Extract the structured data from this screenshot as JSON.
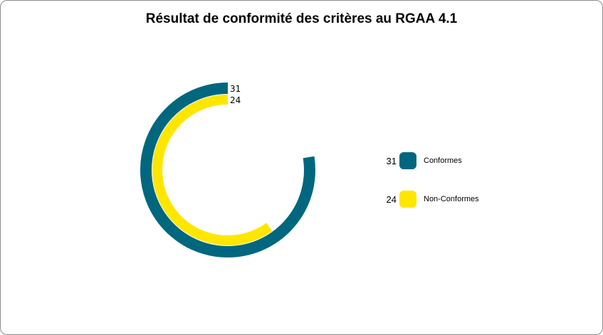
{
  "chart_data": {
    "type": "radial-bar",
    "title": "Résultat de conformité des critères au RGAA 4.1",
    "max": 40,
    "legend_position": "right",
    "series": [
      {
        "name": "Conformes",
        "value": 31,
        "value_label": "31",
        "color": "#00677f"
      },
      {
        "name": "Non-Conformes",
        "value": 24,
        "value_label": "24",
        "color": "#ffe600"
      }
    ]
  }
}
